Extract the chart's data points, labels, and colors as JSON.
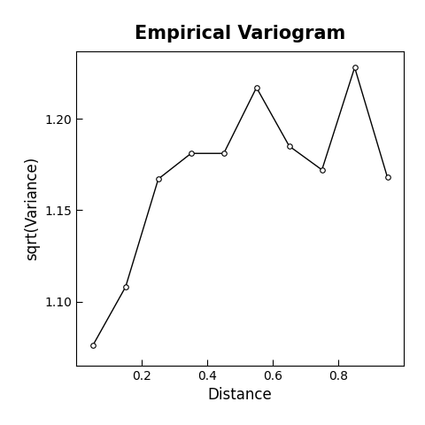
{
  "title": "Empirical Variogram",
  "xlabel": "Distance",
  "ylabel": "sqrt(Variance)",
  "x": [
    0.05,
    0.15,
    0.25,
    0.35,
    0.45,
    0.55,
    0.65,
    0.75,
    0.85,
    0.95
  ],
  "y": [
    1.076,
    1.108,
    1.167,
    1.181,
    1.181,
    1.217,
    1.185,
    1.172,
    1.228,
    1.168
  ],
  "xlim": [
    0.0,
    1.0
  ],
  "ylim": [
    1.065,
    1.237
  ],
  "xticks": [
    0.2,
    0.4,
    0.6,
    0.8
  ],
  "yticks": [
    1.1,
    1.15,
    1.2
  ],
  "line_color": "#000000",
  "marker": "o",
  "marker_facecolor": "#ffffff",
  "marker_edgecolor": "#000000",
  "marker_size": 4,
  "line_width": 1.0,
  "background_color": "#ffffff",
  "title_fontsize": 15,
  "label_fontsize": 12,
  "tick_fontsize": 10
}
